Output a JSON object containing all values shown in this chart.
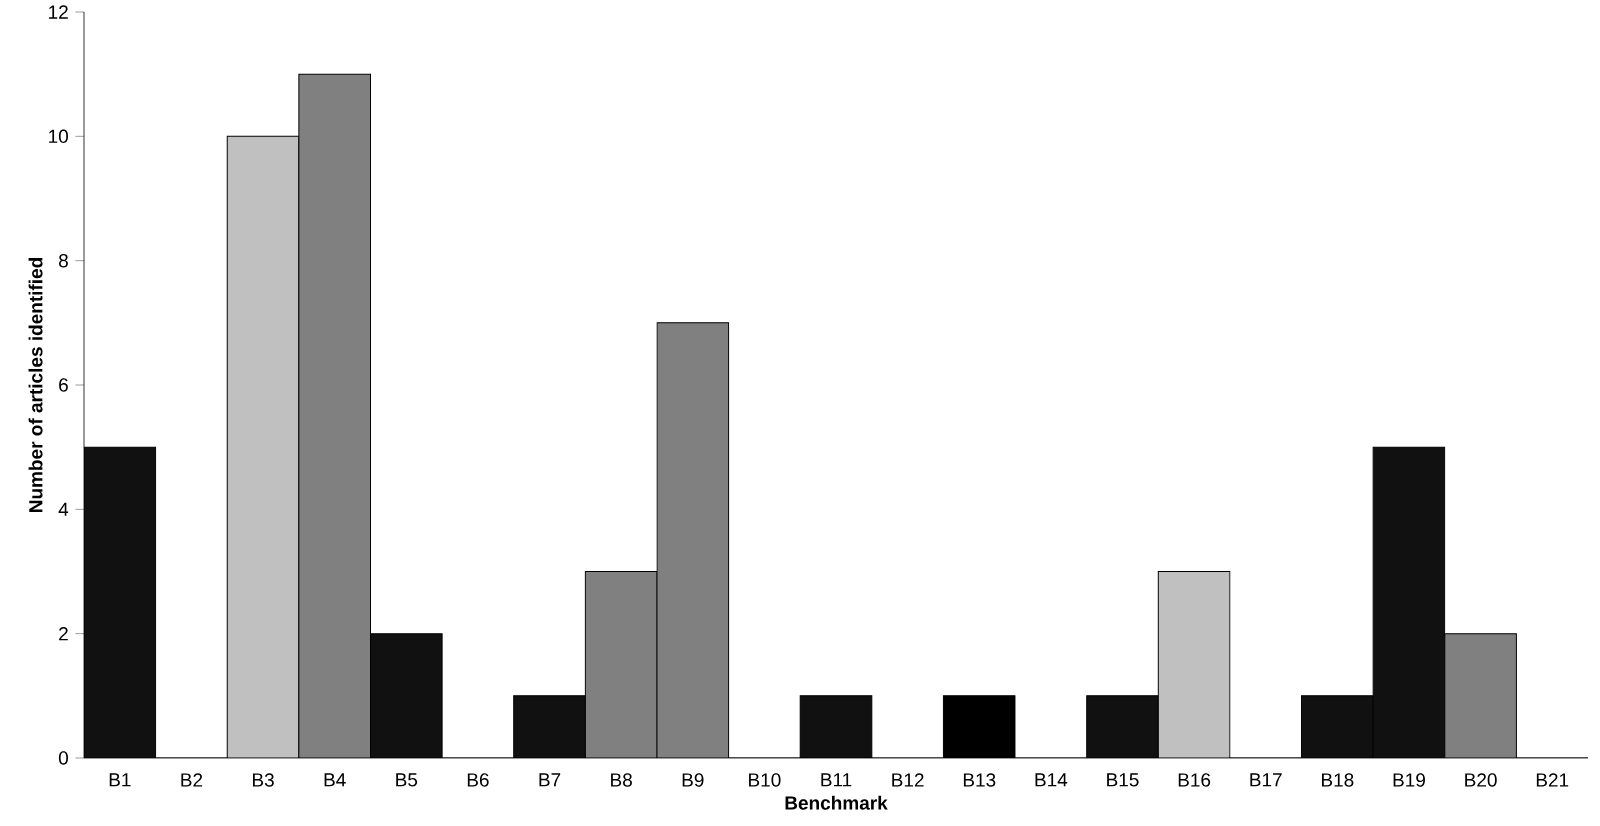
{
  "chart_data": {
    "type": "bar",
    "xlabel": "Benchmark",
    "ylabel": "Number of articles identified",
    "categories": [
      "B1",
      "B2",
      "B3",
      "B4",
      "B5",
      "B6",
      "B7",
      "B8",
      "B9",
      "B10",
      "B11",
      "B12",
      "B13",
      "B14",
      "B15",
      "B16",
      "B17",
      "B18",
      "B19",
      "B20",
      "B21"
    ],
    "values": [
      5,
      0,
      10,
      11,
      2,
      0,
      1,
      3,
      7,
      0,
      1,
      0,
      1,
      0,
      1,
      3,
      0,
      1,
      5,
      2,
      0
    ],
    "colors": [
      "#111111",
      "#111111",
      "#c0c0c0",
      "#808080",
      "#111111",
      "#111111",
      "#111111",
      "#808080",
      "#808080",
      "#111111",
      "#111111",
      "#111111",
      "#000000",
      "#111111",
      "#111111",
      "#c0c0c0",
      "#111111",
      "#111111",
      "#111111",
      "#808080",
      "#111111"
    ],
    "ylim": [
      0,
      12
    ],
    "yticks": [
      0,
      2,
      4,
      6,
      8,
      10,
      12
    ],
    "grid": false
  }
}
